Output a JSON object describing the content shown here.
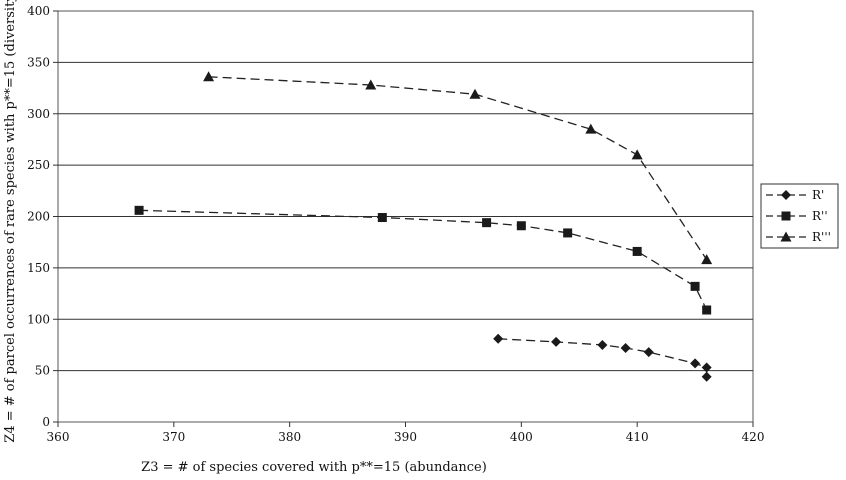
{
  "chart_data": {
    "type": "line",
    "xlabel": "Z3 = # of species covered with p**=15 (abundance)",
    "ylabel": "Z4 = # of parcel occurrences of rare species with p**=15 (diversity)",
    "xlim": [
      360,
      420
    ],
    "ylim": [
      0,
      400
    ],
    "x_ticks": [
      "360",
      "370",
      "380",
      "390",
      "400",
      "410",
      "420"
    ],
    "y_ticks": [
      "0",
      "50",
      "100",
      "150",
      "200",
      "250",
      "300",
      "350",
      "400"
    ],
    "grid": "horizontal",
    "legend_position": "right",
    "series": [
      {
        "name": "R'",
        "marker": "diamond",
        "points": [
          [
            398,
            81
          ],
          [
            403,
            78
          ],
          [
            407,
            75
          ],
          [
            409,
            72
          ],
          [
            411,
            68
          ],
          [
            415,
            57
          ],
          [
            416,
            53
          ],
          [
            416,
            44
          ]
        ]
      },
      {
        "name": "R''",
        "marker": "square",
        "points": [
          [
            367,
            206
          ],
          [
            388,
            199
          ],
          [
            397,
            194
          ],
          [
            400,
            191
          ],
          [
            404,
            184
          ],
          [
            410,
            166
          ],
          [
            415,
            132
          ],
          [
            416,
            109
          ]
        ]
      },
      {
        "name": "R'''",
        "marker": "triangle",
        "points": [
          [
            373,
            336
          ],
          [
            387,
            328
          ],
          [
            396,
            319
          ],
          [
            406,
            285
          ],
          [
            410,
            260
          ],
          [
            416,
            158
          ]
        ]
      }
    ]
  }
}
